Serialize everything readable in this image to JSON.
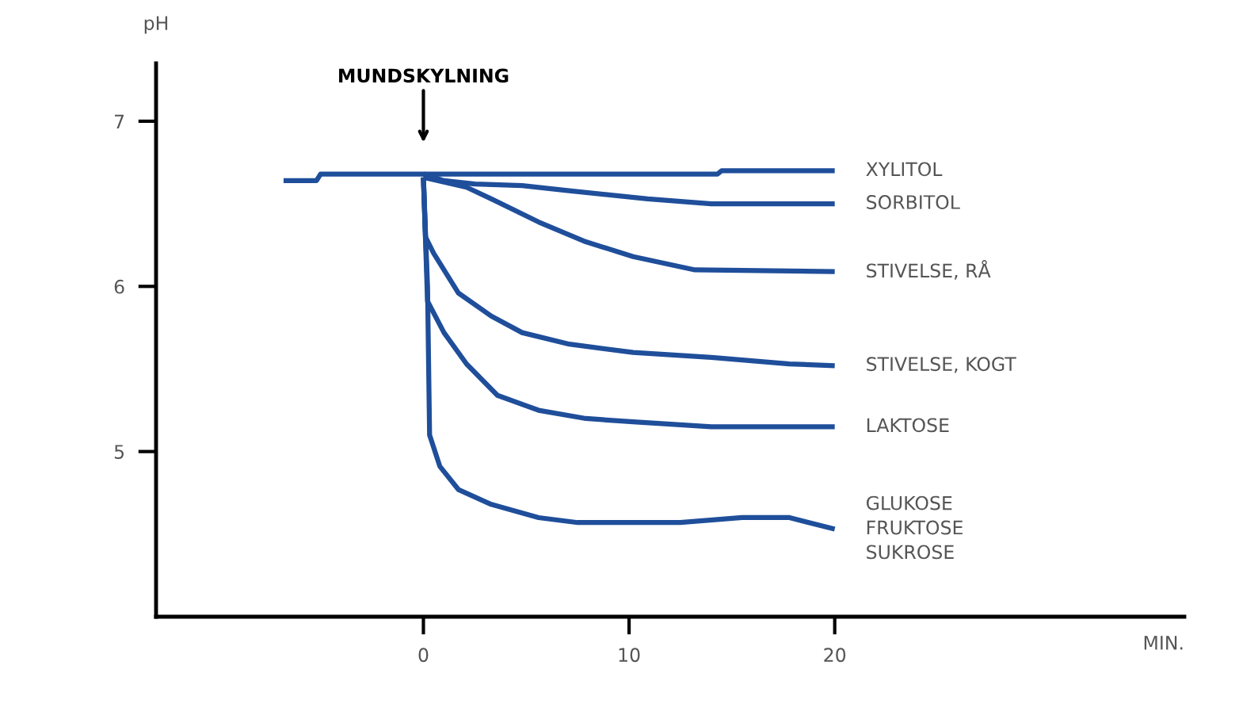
{
  "chart_data": {
    "type": "line",
    "ylabel": "pH",
    "xlabel": "MIN.",
    "xlim": [
      -13,
      37
    ],
    "ylim": [
      4,
      7.35
    ],
    "xticks": [
      0,
      10,
      20
    ],
    "yticks": [
      5,
      6,
      7
    ],
    "grid": false,
    "legend": false,
    "line_style": "solid",
    "marker": "none",
    "annotations": [
      "MUNDSKYLNING"
    ],
    "series": [
      {
        "name": "XYLITOL",
        "color": "#1f4e9a",
        "x": [
          -6.8,
          -5.2,
          -5.0,
          14.3,
          14.5,
          20
        ],
        "values": [
          6.64,
          6.64,
          6.68,
          6.68,
          6.7,
          6.7
        ]
      },
      {
        "name": "SORBITOL",
        "color": "#1f4e9a",
        "x": [
          0,
          1,
          2.5,
          4.8,
          7,
          10.9,
          14,
          20
        ],
        "values": [
          6.68,
          6.64,
          6.62,
          6.61,
          6.58,
          6.53,
          6.5,
          6.5
        ]
      },
      {
        "name": "STIVELSE, RÅ",
        "color": "#1f4e9a",
        "x": [
          0,
          2.1,
          3.3,
          5.6,
          7.9,
          10.2,
          13.2,
          20
        ],
        "values": [
          6.66,
          6.6,
          6.53,
          6.39,
          6.27,
          6.18,
          6.1,
          6.09
        ]
      },
      {
        "name": "STIVELSE, KOGT",
        "color": "#1f4e9a",
        "x": [
          0,
          0.1,
          0.5,
          1.7,
          3.3,
          4.8,
          7.1,
          10.2,
          14,
          17.8,
          20
        ],
        "values": [
          6.66,
          6.3,
          6.2,
          5.96,
          5.82,
          5.72,
          5.65,
          5.6,
          5.57,
          5.53,
          5.52
        ]
      },
      {
        "name": "LAKTOSE",
        "color": "#1f4e9a",
        "x": [
          0,
          0.2,
          1,
          2.1,
          3.6,
          5.6,
          7.9,
          10.2,
          14,
          20
        ],
        "values": [
          6.66,
          5.91,
          5.72,
          5.53,
          5.34,
          5.25,
          5.2,
          5.18,
          5.15,
          5.15
        ]
      },
      {
        "name": "GLUKOSE\nFRUKTOSE\nSUKROSE",
        "color": "#1f4e9a",
        "x": [
          0,
          0.2,
          0.3,
          0.8,
          1.7,
          3.3,
          5.6,
          7.5,
          12.5,
          15.5,
          17.8,
          20
        ],
        "values": [
          6.66,
          6.0,
          5.1,
          4.91,
          4.77,
          4.68,
          4.6,
          4.57,
          4.57,
          4.6,
          4.6,
          4.53
        ]
      }
    ]
  }
}
